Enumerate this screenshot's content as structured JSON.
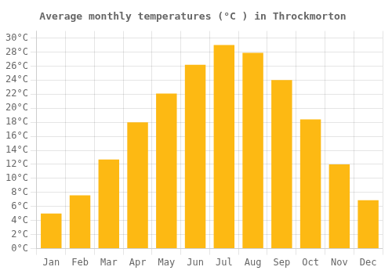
{
  "chart_data": {
    "type": "bar",
    "title": "Average monthly temperatures (°C ) in Throckmorton",
    "categories": [
      "Jan",
      "Feb",
      "Mar",
      "Apr",
      "May",
      "Jun",
      "Jul",
      "Aug",
      "Sep",
      "Oct",
      "Nov",
      "Dec"
    ],
    "values": [
      5.0,
      7.6,
      12.7,
      18.0,
      22.1,
      26.2,
      29.0,
      27.9,
      24.0,
      18.4,
      12.0,
      6.9
    ],
    "color": "#FDB913",
    "ylim": [
      0,
      31
    ],
    "yticks": [
      {
        "value": 0,
        "label": "0°C"
      },
      {
        "value": 2,
        "label": "2°C"
      },
      {
        "value": 4,
        "label": "4°C"
      },
      {
        "value": 6,
        "label": "6°C"
      },
      {
        "value": 8,
        "label": "8°C"
      },
      {
        "value": 10,
        "label": "10°C"
      },
      {
        "value": 12,
        "label": "12°C"
      },
      {
        "value": 14,
        "label": "14°C"
      },
      {
        "value": 16,
        "label": "16°C"
      },
      {
        "value": 18,
        "label": "18°C"
      },
      {
        "value": 20,
        "label": "20°C"
      },
      {
        "value": 22,
        "label": "22°C"
      },
      {
        "value": 24,
        "label": "24°C"
      },
      {
        "value": 26,
        "label": "26°C"
      },
      {
        "value": 28,
        "label": "28°C"
      },
      {
        "value": 30,
        "label": "30°C"
      }
    ],
    "grid": true
  }
}
